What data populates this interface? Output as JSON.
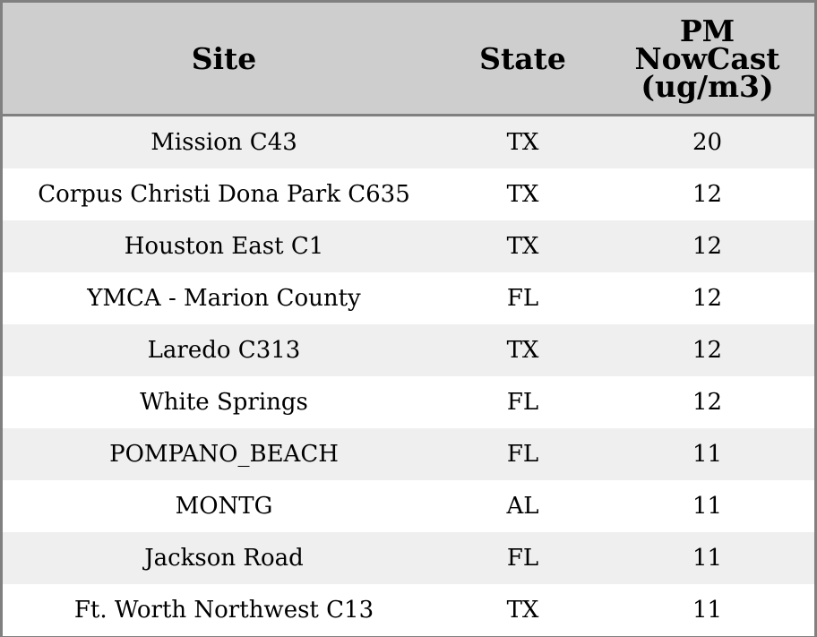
{
  "chart_data": {
    "type": "table",
    "columns": [
      "Site",
      "State",
      "PM NowCast (ug/m3)"
    ],
    "header_lines": {
      "site": [
        "Site"
      ],
      "state": [
        "State"
      ],
      "pm": [
        "PM",
        "NowCast",
        "(ug/m3)"
      ]
    },
    "rows": [
      {
        "site": "Mission C43",
        "state": "TX",
        "pm": "20"
      },
      {
        "site": "Corpus Christi Dona Park C635",
        "state": "TX",
        "pm": "12"
      },
      {
        "site": "Houston East C1",
        "state": "TX",
        "pm": "12"
      },
      {
        "site": "YMCA - Marion County",
        "state": "FL",
        "pm": "12"
      },
      {
        "site": "Laredo C313",
        "state": "TX",
        "pm": "12"
      },
      {
        "site": "White Springs",
        "state": "FL",
        "pm": "12"
      },
      {
        "site": "POMPANO_BEACH",
        "state": "FL",
        "pm": "11"
      },
      {
        "site": "MONTG",
        "state": "AL",
        "pm": "11"
      },
      {
        "site": "Jackson Road",
        "state": "FL",
        "pm": "11"
      },
      {
        "site": "Ft. Worth Northwest C13",
        "state": "TX",
        "pm": "11"
      }
    ]
  },
  "colors": {
    "header_background": "#cecece",
    "border": "#808080",
    "row_stripe": "#efefef",
    "row_plain": "#ffffff",
    "text": "#000000"
  }
}
